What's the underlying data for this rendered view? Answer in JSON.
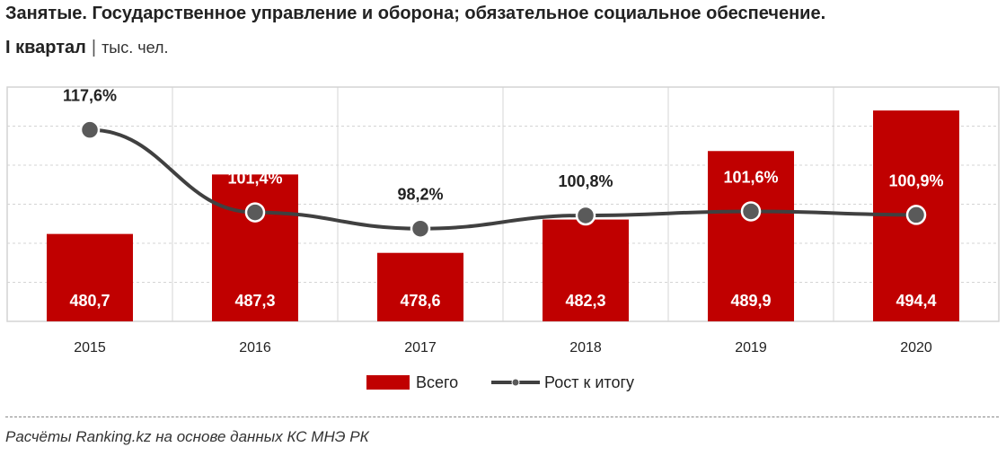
{
  "title": {
    "line1": "Занятые. Государственное управление и оборона; обязательное социальное обеспечение.",
    "line2_bold": "I квартал",
    "separator": "|",
    "unit": "тыс. чел."
  },
  "colors": {
    "bar": "#c00000",
    "line": "#404040",
    "grid": "#d4d4d4",
    "bar_label": "#ffffff"
  },
  "chart_data": {
    "type": "bar",
    "categories": [
      "2015",
      "2016",
      "2017",
      "2018",
      "2019",
      "2020"
    ],
    "series": [
      {
        "name": "Всего",
        "type": "bar",
        "values": [
          480.7,
          487.3,
          478.6,
          482.3,
          489.9,
          494.4
        ],
        "labels": [
          "480,7",
          "487,3",
          "478,6",
          "482,3",
          "489,9",
          "494,4"
        ]
      },
      {
        "name": "Рост к итогу",
        "type": "line",
        "values": [
          117.6,
          101.4,
          98.2,
          100.8,
          101.6,
          100.9
        ],
        "labels": [
          "117,6%",
          "101,4%",
          "98,2%",
          "100,8%",
          "101,6%",
          "100,9%"
        ]
      }
    ],
    "legend_position": "bottom",
    "grid": true
  },
  "footnote": "Расчёты Ranking.kz на основе данных КС МНЭ РК"
}
